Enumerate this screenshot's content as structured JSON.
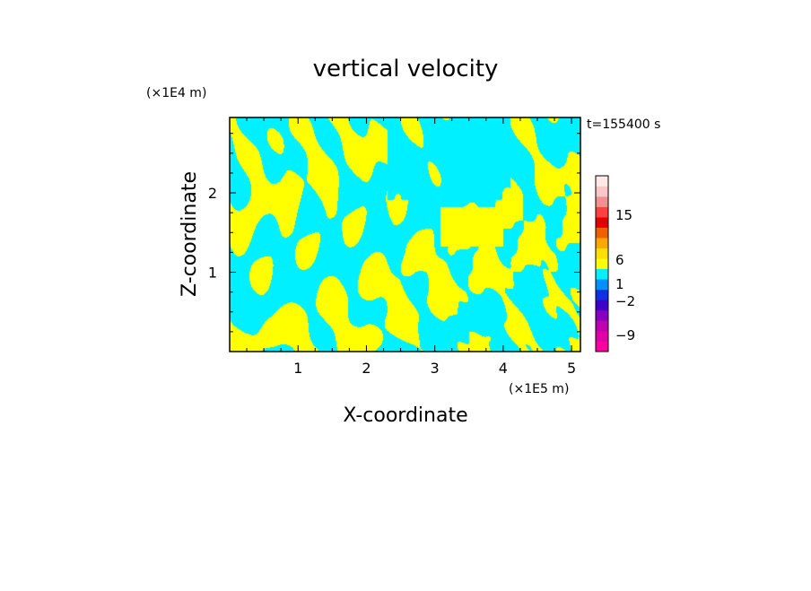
{
  "chart_data": {
    "type": "heatmap",
    "title": "vertical velocity",
    "xlabel": "X-coordinate",
    "ylabel": "Z-coordinate",
    "x_unit": "(×1E5 m)",
    "y_unit": "(×1E4 m)",
    "time_label": "t=155400 s",
    "xlim": [
      0,
      5.13
    ],
    "ylim": [
      0,
      2.95
    ],
    "x_ticks": [
      {
        "value": 1,
        "label": "1"
      },
      {
        "value": 2,
        "label": "2"
      },
      {
        "value": 3,
        "label": "3"
      },
      {
        "value": 4,
        "label": "4"
      },
      {
        "value": 5,
        "label": "5"
      }
    ],
    "y_ticks": [
      {
        "value": 1,
        "label": "1"
      },
      {
        "value": 2,
        "label": "2"
      }
    ],
    "colorbar": {
      "levels": [
        {
          "color": "#ff00a0"
        },
        {
          "color": "#e000a8"
        },
        {
          "color": "#c000b0"
        },
        {
          "color": "#8800c0"
        },
        {
          "color": "#4000c8"
        },
        {
          "color": "#1030e0"
        },
        {
          "color": "#0090ff"
        },
        {
          "color": "#00f0ff"
        },
        {
          "color": "#ffff00"
        },
        {
          "color": "#ffe000"
        },
        {
          "color": "#ffa800"
        },
        {
          "color": "#f06000"
        },
        {
          "color": "#e00000"
        },
        {
          "color": "#ff4040"
        },
        {
          "color": "#f09090"
        },
        {
          "color": "#f8c8c8"
        },
        {
          "color": "#ffe8e8"
        }
      ],
      "labels": [
        {
          "value": -9,
          "label": "−9"
        },
        {
          "value": -2,
          "label": "−2"
        },
        {
          "value": 1,
          "label": "1"
        },
        {
          "value": 6,
          "label": "6"
        },
        {
          "value": 15,
          "label": "15"
        }
      ]
    },
    "field_colors": {
      "negative": "#00f0ff",
      "positive": "#ffff00"
    }
  }
}
